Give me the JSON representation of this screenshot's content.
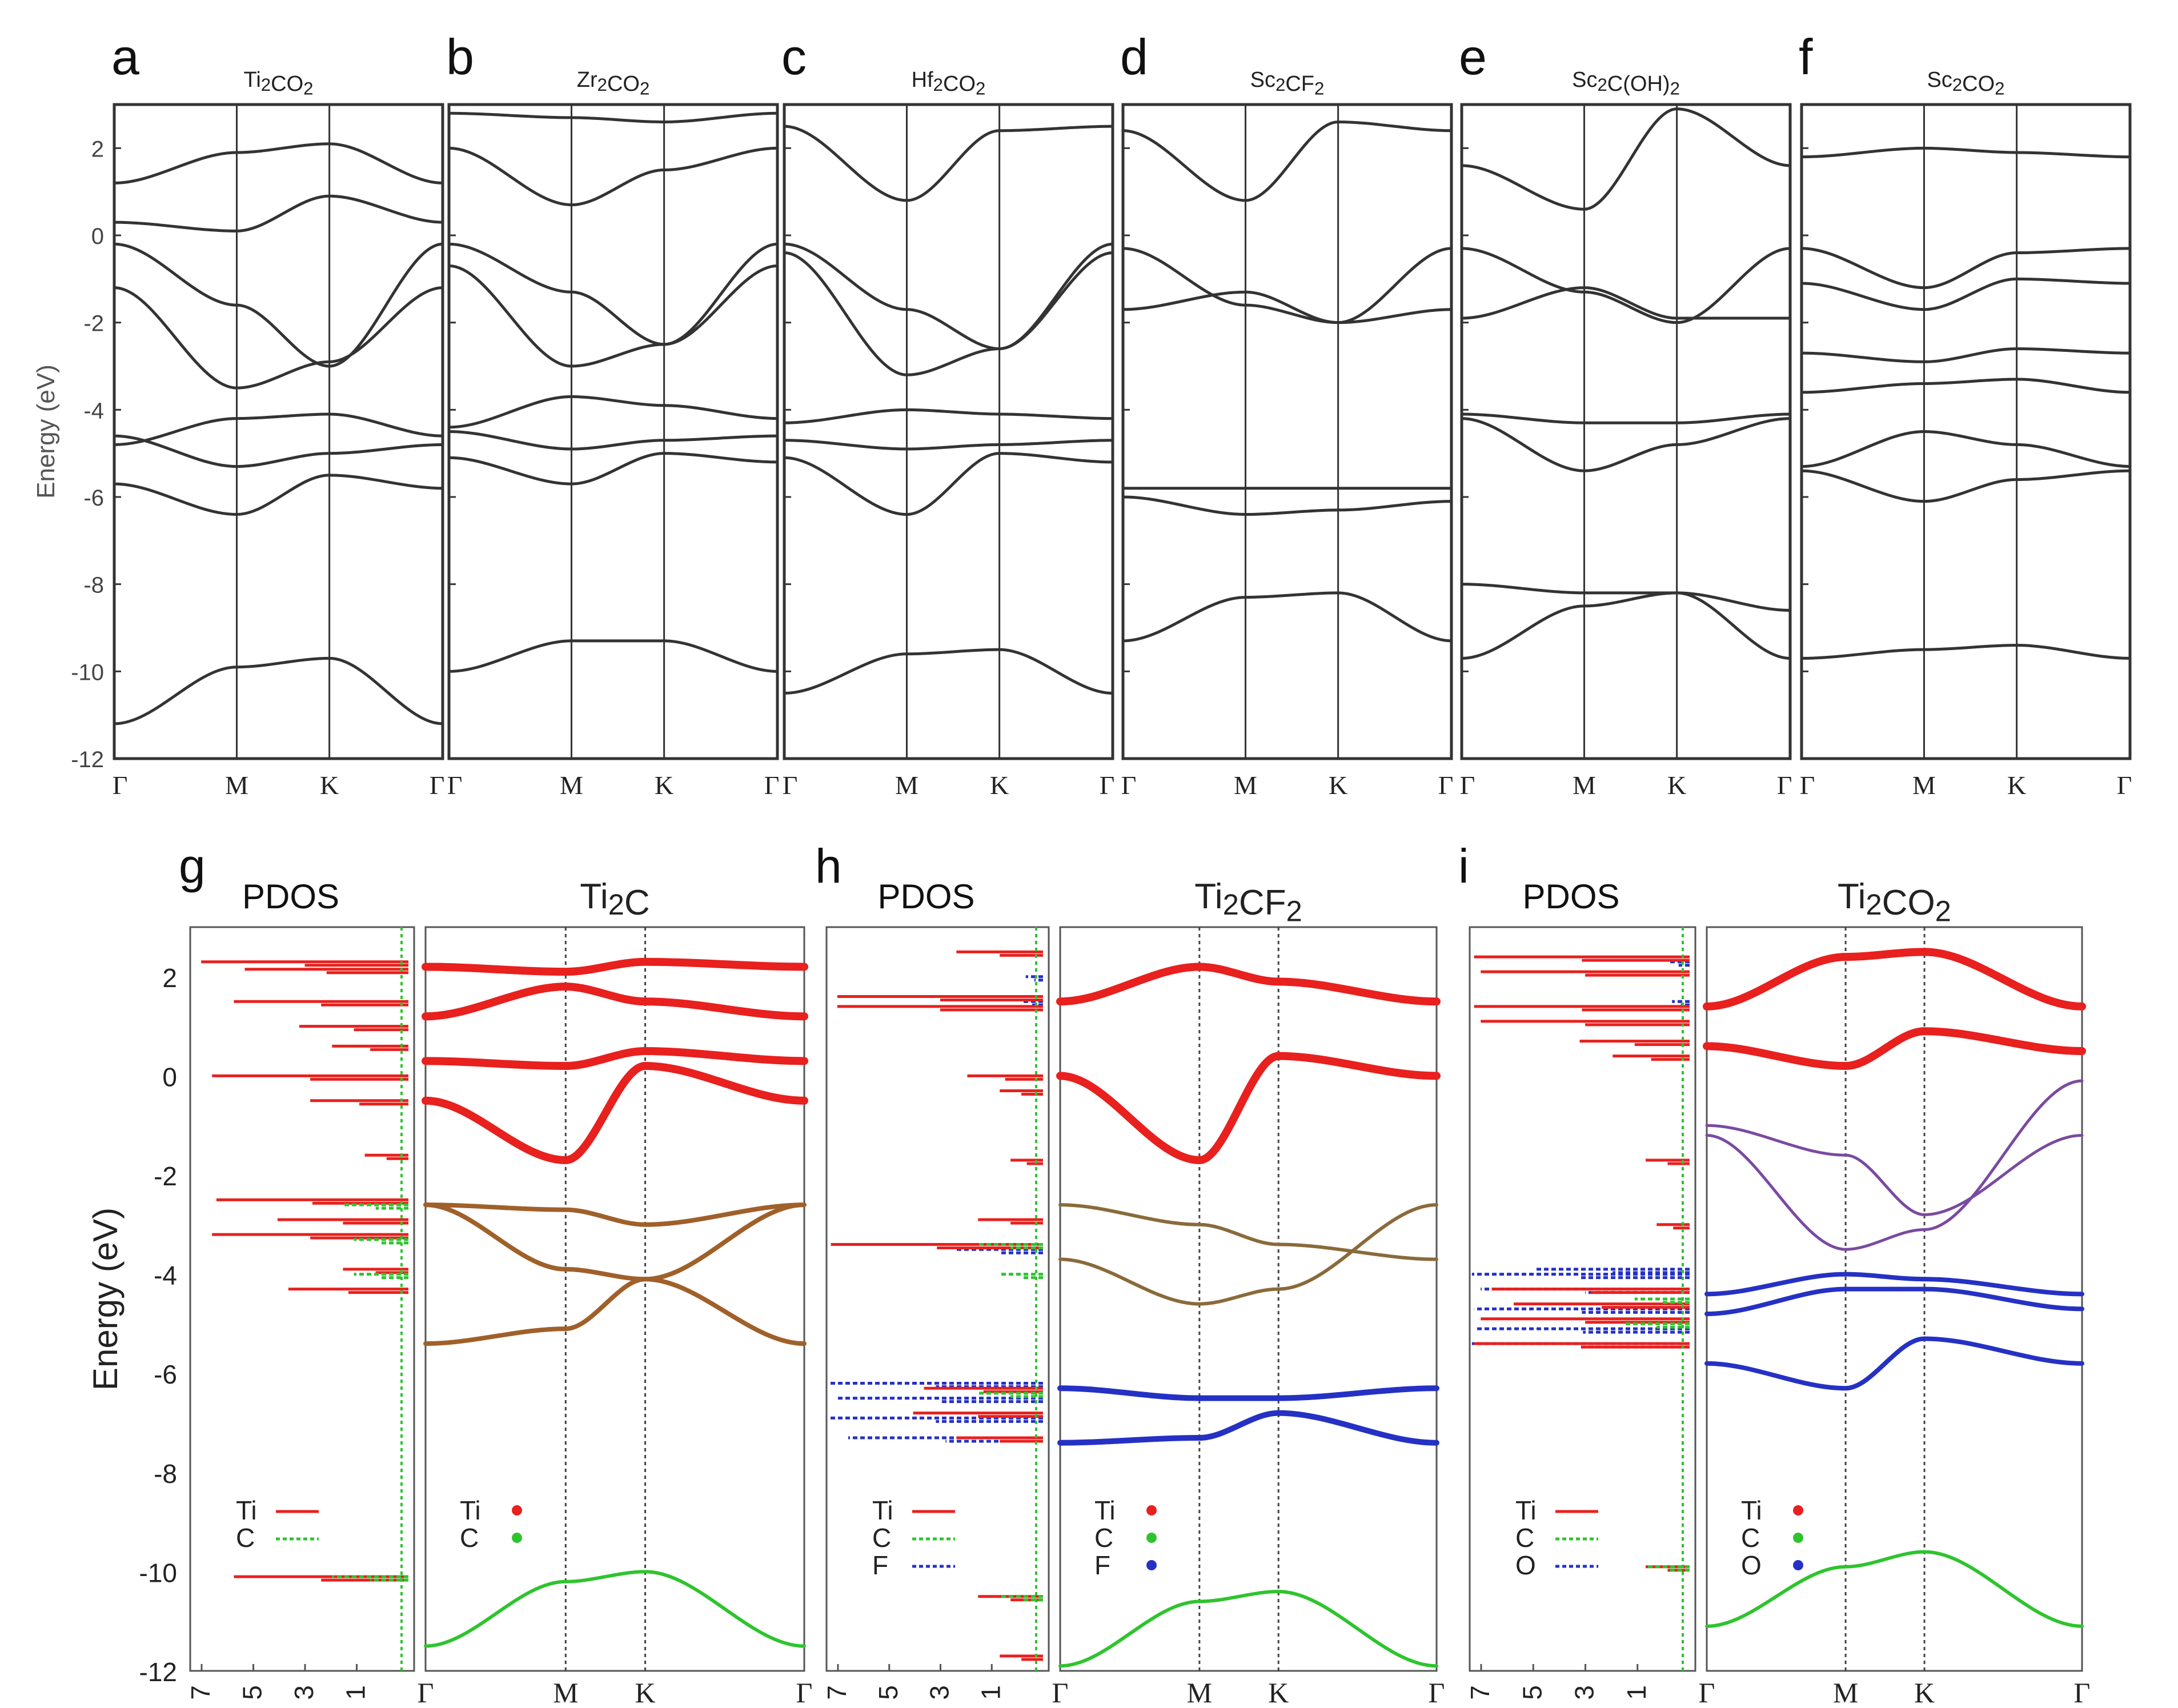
{
  "figure": {
    "top_row": {
      "ylabel": "Energy (eV)",
      "yticks": [
        2,
        0,
        -2,
        -4,
        -6,
        -8,
        -10,
        -12
      ],
      "ylim": [
        -12,
        3
      ],
      "panels": [
        {
          "letter": "a",
          "title": "Ti2CO2",
          "kpoints": [
            "Γ",
            "M",
            "K",
            "Γ"
          ]
        },
        {
          "letter": "b",
          "title": "Zr2CO2",
          "kpoints": [
            "Γ",
            "M",
            "K",
            "Γ"
          ]
        },
        {
          "letter": "c",
          "title": "Hf2CO2",
          "kpoints": [
            "Γ",
            "M",
            "K",
            "Γ"
          ]
        },
        {
          "letter": "d",
          "title": "Sc2CF2",
          "kpoints": [
            "Γ",
            "M",
            "K",
            "Γ"
          ]
        },
        {
          "letter": "e",
          "title": "Sc2C(OH)2",
          "kpoints": [
            "Γ",
            "M",
            "K",
            "Γ"
          ]
        },
        {
          "letter": "f",
          "title": "Sc2CO2",
          "kpoints": [
            "Γ",
            "M",
            "K",
            "Γ"
          ]
        }
      ]
    },
    "bottom_row": {
      "ylabel": "Energy (eV)",
      "yticks": [
        2,
        0,
        -2,
        -4,
        -6,
        -8,
        -10,
        -12
      ],
      "ylim": [
        -12,
        3
      ],
      "pdos_xticks": [
        "7",
        "5",
        "3",
        "1"
      ],
      "pdos_title": "PDOS",
      "colors": {
        "Ti": "#e8201e",
        "C": "#2ec42e",
        "F": "#2531c4",
        "O": "#2531c4"
      },
      "panels": [
        {
          "letter": "g",
          "title": "Ti2C",
          "kpoints": [
            "Γ",
            "M",
            "K",
            "Γ"
          ],
          "pdos_legend": [
            "Ti",
            "C"
          ],
          "band_legend": [
            "Ti",
            "C"
          ]
        },
        {
          "letter": "h",
          "title": "Ti2CF2",
          "kpoints": [
            "Γ",
            "M",
            "K",
            "Γ"
          ],
          "pdos_legend": [
            "Ti",
            "C",
            "F"
          ],
          "band_legend": [
            "Ti",
            "C",
            "F"
          ]
        },
        {
          "letter": "i",
          "title": "Ti2CO2",
          "kpoints": [
            "Γ",
            "M",
            "K",
            "Γ"
          ],
          "pdos_legend": [
            "Ti",
            "C",
            "O"
          ],
          "band_legend": [
            "Ti",
            "C",
            "O"
          ]
        }
      ]
    }
  },
  "chart_data": [
    {
      "type": "line",
      "title": "Ti2CO2",
      "ylabel": "Energy (eV)",
      "ylim": [
        -12,
        3
      ],
      "x": [
        "Γ",
        "M",
        "K",
        "Γ"
      ],
      "series": [
        {
          "values": [
            -11.2,
            -9.9,
            -9.7,
            -11.2
          ]
        },
        {
          "values": [
            -5.7,
            -6.4,
            -5.5,
            -5.8
          ]
        },
        {
          "values": [
            -4.6,
            -5.3,
            -5.0,
            -4.8
          ]
        },
        {
          "values": [
            -4.8,
            -4.2,
            -4.1,
            -4.6
          ]
        },
        {
          "values": [
            -1.2,
            -3.5,
            -2.9,
            -1.2
          ]
        },
        {
          "values": [
            -0.2,
            -1.6,
            -3.0,
            -0.2
          ]
        },
        {
          "values": [
            0.3,
            0.1,
            0.9,
            0.3
          ]
        },
        {
          "values": [
            1.2,
            1.9,
            2.1,
            1.2
          ]
        }
      ]
    },
    {
      "type": "line",
      "title": "Zr2CO2",
      "ylabel": "Energy (eV)",
      "ylim": [
        -12,
        3
      ],
      "x": [
        "Γ",
        "M",
        "K",
        "Γ"
      ],
      "series": [
        {
          "values": [
            -10.0,
            -9.3,
            -9.3,
            -10.0
          ]
        },
        {
          "values": [
            -5.1,
            -5.7,
            -5.0,
            -5.2
          ]
        },
        {
          "values": [
            -4.5,
            -4.9,
            -4.7,
            -4.6
          ]
        },
        {
          "values": [
            -4.4,
            -3.7,
            -3.9,
            -4.2
          ]
        },
        {
          "values": [
            -0.7,
            -3.0,
            -2.5,
            -0.7
          ]
        },
        {
          "values": [
            -0.2,
            -1.3,
            -2.5,
            -0.2
          ]
        },
        {
          "values": [
            2.0,
            0.7,
            1.5,
            2.0
          ]
        },
        {
          "values": [
            2.8,
            2.7,
            2.6,
            2.8
          ]
        }
      ]
    },
    {
      "type": "line",
      "title": "Hf2CO2",
      "ylabel": "Energy (eV)",
      "ylim": [
        -12,
        3
      ],
      "x": [
        "Γ",
        "M",
        "K",
        "Γ"
      ],
      "series": [
        {
          "values": [
            -10.5,
            -9.6,
            -9.5,
            -10.5
          ]
        },
        {
          "values": [
            -5.1,
            -6.4,
            -5.0,
            -5.2
          ]
        },
        {
          "values": [
            -4.7,
            -4.9,
            -4.8,
            -4.7
          ]
        },
        {
          "values": [
            -4.3,
            -4.0,
            -4.1,
            -4.2
          ]
        },
        {
          "values": [
            -0.4,
            -3.2,
            -2.6,
            -0.4
          ]
        },
        {
          "values": [
            -0.2,
            -1.7,
            -2.6,
            -0.2
          ]
        },
        {
          "values": [
            2.5,
            0.8,
            2.4,
            2.5
          ]
        }
      ]
    },
    {
      "type": "line",
      "title": "Sc2CF2",
      "ylabel": "Energy (eV)",
      "ylim": [
        -12,
        3
      ],
      "x": [
        "Γ",
        "M",
        "K",
        "Γ"
      ],
      "series": [
        {
          "values": [
            -9.3,
            -8.3,
            -8.2,
            -9.3
          ]
        },
        {
          "values": [
            -6.0,
            -6.4,
            -6.3,
            -6.1
          ]
        },
        {
          "values": [
            -5.8,
            -5.8,
            -5.8,
            -5.8
          ]
        },
        {
          "values": [
            -1.7,
            -1.3,
            -2.0,
            -1.7
          ]
        },
        {
          "values": [
            -0.3,
            -1.6,
            -2.0,
            -0.3
          ]
        },
        {
          "values": [
            2.4,
            0.8,
            2.6,
            2.4
          ]
        }
      ]
    },
    {
      "type": "line",
      "title": "Sc2C(OH)2",
      "ylabel": "Energy (eV)",
      "ylim": [
        -12,
        3
      ],
      "x": [
        "Γ",
        "M",
        "K",
        "Γ"
      ],
      "series": [
        {
          "values": [
            -9.7,
            -8.5,
            -8.2,
            -9.7
          ]
        },
        {
          "values": [
            -8.0,
            -8.2,
            -8.2,
            -8.6
          ]
        },
        {
          "values": [
            -4.2,
            -5.4,
            -4.8,
            -4.2
          ]
        },
        {
          "values": [
            -4.1,
            -4.3,
            -4.3,
            -4.1
          ]
        },
        {
          "values": [
            -1.9,
            -1.2,
            -1.9,
            -1.9
          ]
        },
        {
          "values": [
            -0.3,
            -1.3,
            -2.0,
            -0.3
          ]
        },
        {
          "values": [
            1.6,
            0.6,
            2.9,
            1.6
          ]
        }
      ]
    },
    {
      "type": "line",
      "title": "Sc2CO2",
      "ylabel": "Energy (eV)",
      "ylim": [
        -12,
        3
      ],
      "x": [
        "Γ",
        "M",
        "K",
        "Γ"
      ],
      "series": [
        {
          "values": [
            -9.7,
            -9.5,
            -9.4,
            -9.7
          ]
        },
        {
          "values": [
            -5.4,
            -6.1,
            -5.6,
            -5.4
          ]
        },
        {
          "values": [
            -5.3,
            -4.5,
            -4.8,
            -5.3
          ]
        },
        {
          "values": [
            -3.6,
            -3.4,
            -3.3,
            -3.6
          ]
        },
        {
          "values": [
            -2.7,
            -2.9,
            -2.6,
            -2.7
          ]
        },
        {
          "values": [
            -1.1,
            -1.7,
            -1.0,
            -1.1
          ]
        },
        {
          "values": [
            -0.3,
            -1.2,
            -0.4,
            -0.3
          ]
        },
        {
          "values": [
            1.8,
            2.0,
            1.9,
            1.8
          ]
        }
      ]
    },
    {
      "type": "line",
      "title": "Ti2C",
      "ylabel": "Energy (eV)",
      "ylim": [
        -12,
        3
      ],
      "x": [
        "Γ",
        "M",
        "K",
        "Γ"
      ],
      "series": [
        {
          "values": [
            -11.5,
            -10.2,
            -10.0,
            -11.5
          ]
        },
        {
          "values": [
            -5.4,
            -5.1,
            -4.1,
            -5.4
          ]
        },
        {
          "values": [
            -2.6,
            -3.9,
            -4.1,
            -2.6
          ]
        },
        {
          "values": [
            -2.6,
            -2.7,
            -3.0,
            -2.6
          ]
        },
        {
          "values": [
            -0.5,
            -1.7,
            0.2,
            -0.5
          ]
        },
        {
          "values": [
            0.3,
            0.2,
            0.5,
            0.3
          ]
        },
        {
          "values": [
            1.2,
            1.8,
            1.5,
            1.2
          ]
        },
        {
          "values": [
            2.2,
            2.1,
            2.3,
            2.2
          ]
        }
      ]
    },
    {
      "type": "line",
      "title": "Ti2CF2",
      "ylabel": "Energy (eV)",
      "ylim": [
        -12,
        3
      ],
      "x": [
        "Γ",
        "M",
        "K",
        "Γ"
      ],
      "series": [
        {
          "values": [
            -11.9,
            -10.6,
            -10.4,
            -11.9
          ]
        },
        {
          "values": [
            -7.4,
            -7.3,
            -6.8,
            -7.4
          ]
        },
        {
          "values": [
            -6.3,
            -6.5,
            -6.5,
            -6.3
          ]
        },
        {
          "values": [
            -3.7,
            -4.6,
            -4.3,
            -2.6
          ]
        },
        {
          "values": [
            -2.6,
            -3.0,
            -3.4,
            -3.7
          ]
        },
        {
          "values": [
            0.0,
            -1.7,
            0.4,
            0.0
          ]
        },
        {
          "values": [
            1.5,
            2.2,
            1.9,
            1.5
          ]
        }
      ]
    },
    {
      "type": "line",
      "title": "Ti2CO2",
      "ylabel": "Energy (eV)",
      "ylim": [
        -12,
        3
      ],
      "x": [
        "Γ",
        "M",
        "K",
        "Γ"
      ],
      "series": [
        {
          "values": [
            -11.1,
            -9.9,
            -9.6,
            -11.1
          ]
        },
        {
          "values": [
            -5.8,
            -6.3,
            -5.3,
            -5.8
          ]
        },
        {
          "values": [
            -4.8,
            -4.3,
            -4.3,
            -4.7
          ]
        },
        {
          "values": [
            -4.4,
            -4.0,
            -4.1,
            -4.4
          ]
        },
        {
          "values": [
            -1.2,
            -3.5,
            -3.1,
            -0.1
          ]
        },
        {
          "values": [
            -1.0,
            -1.6,
            -2.8,
            -1.2
          ]
        },
        {
          "values": [
            0.6,
            0.2,
            0.9,
            0.5
          ]
        },
        {
          "values": [
            1.4,
            2.4,
            2.5,
            1.4
          ]
        }
      ]
    }
  ]
}
